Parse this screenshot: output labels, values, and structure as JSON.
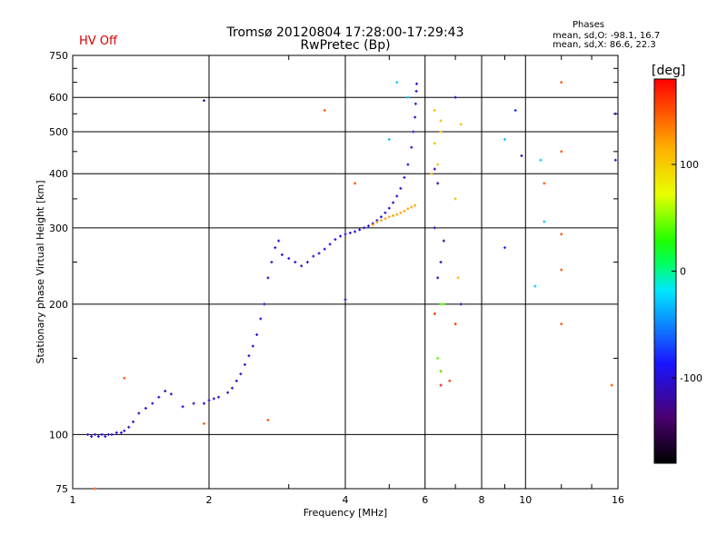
{
  "header": {
    "title_line1": "Tromsø 20120804 17:28:00-17:29:43",
    "title_line2": "RwPretec (Bp)",
    "hv_status": "HV Off",
    "hv_color": "#d40000",
    "phases_title": "Phases",
    "phases_o": "mean, sd,O: -98.1, 16.7",
    "phases_x": "mean, sd,X:  86.6, 22.3"
  },
  "colorbar": {
    "unit": "[deg]",
    "range": [
      -180,
      180
    ],
    "ticks": [
      100,
      0,
      -100
    ],
    "tick_labels": [
      "100",
      "0",
      "-100"
    ]
  },
  "chart_data": {
    "type": "scatter",
    "title": "Tromsø 20120804 17:28:00-17:29:43",
    "subtitle": "RwPretec (Bp)",
    "xlabel": "Frequency [MHz]",
    "ylabel": "Stationary phase Virtual Height [km]",
    "x_scale": "log",
    "y_scale": "log",
    "xlim": [
      1,
      16
    ],
    "ylim": [
      75,
      750
    ],
    "x_ticks": [
      1,
      2,
      4,
      6,
      8,
      10,
      16
    ],
    "x_tick_labels": [
      "1",
      "2",
      "4",
      "6",
      "8",
      "10",
      "16"
    ],
    "y_ticks": [
      75,
      100,
      200,
      300,
      400,
      500,
      600,
      750
    ],
    "y_tick_labels": [
      "75",
      "100",
      "200",
      "300",
      "400",
      "500",
      "600",
      "750"
    ],
    "grid": true,
    "color_by": "phase_deg",
    "series": [
      {
        "points": [
          [
            1.08,
            100,
            -100
          ],
          [
            1.1,
            99,
            -100
          ],
          [
            1.12,
            100,
            -100
          ],
          [
            1.14,
            99,
            -100
          ],
          [
            1.16,
            100,
            -100
          ],
          [
            1.18,
            99,
            -100
          ],
          [
            1.2,
            100,
            -100
          ],
          [
            1.22,
            100,
            -100
          ],
          [
            1.25,
            101,
            -100
          ],
          [
            1.28,
            101,
            -100
          ],
          [
            1.3,
            102,
            -100
          ],
          [
            1.33,
            104,
            -100
          ],
          [
            1.36,
            107,
            -100
          ],
          [
            1.4,
            112,
            -100
          ],
          [
            1.45,
            115,
            -100
          ],
          [
            1.5,
            118,
            -100
          ],
          [
            1.55,
            122,
            -100
          ],
          [
            1.6,
            126,
            -100
          ],
          [
            1.65,
            124,
            -100
          ],
          [
            1.75,
            116,
            -100
          ],
          [
            1.85,
            118,
            -100
          ],
          [
            1.95,
            118,
            -100
          ],
          [
            2.0,
            120,
            -100
          ],
          [
            2.05,
            121,
            -100
          ],
          [
            2.1,
            122,
            -100
          ],
          [
            2.2,
            125,
            -100
          ],
          [
            2.25,
            128,
            -100
          ],
          [
            2.3,
            133,
            -100
          ],
          [
            2.35,
            138,
            -100
          ],
          [
            2.4,
            145,
            -100
          ],
          [
            2.45,
            152,
            -100
          ],
          [
            2.5,
            160,
            -100
          ],
          [
            2.55,
            170,
            -100
          ],
          [
            2.6,
            185,
            -100
          ],
          [
            2.65,
            200,
            -100
          ],
          [
            2.7,
            230,
            -100
          ],
          [
            2.75,
            250,
            -100
          ],
          [
            2.8,
            270,
            -100
          ],
          [
            2.85,
            280,
            -100
          ],
          [
            2.9,
            260,
            -100
          ],
          [
            3.0,
            255,
            -100
          ],
          [
            3.1,
            250,
            -100
          ],
          [
            3.2,
            245,
            -100
          ],
          [
            3.3,
            250,
            -100
          ],
          [
            3.4,
            258,
            -100
          ],
          [
            3.5,
            262,
            -100
          ],
          [
            3.6,
            268,
            -100
          ],
          [
            3.7,
            275,
            -100
          ],
          [
            3.8,
            282,
            -100
          ],
          [
            3.9,
            287,
            -100
          ],
          [
            4.0,
            290,
            -100
          ],
          [
            4.1,
            292,
            -100
          ],
          [
            4.2,
            294,
            -100
          ],
          [
            4.3,
            297,
            -100
          ],
          [
            4.4,
            300,
            -100
          ],
          [
            4.5,
            303,
            -100
          ],
          [
            4.6,
            307,
            -100
          ],
          [
            4.7,
            312,
            -100
          ],
          [
            4.8,
            318,
            -100
          ],
          [
            4.9,
            325,
            -100
          ],
          [
            5.0,
            333,
            -100
          ],
          [
            5.1,
            343,
            -100
          ],
          [
            5.2,
            355,
            -100
          ],
          [
            5.3,
            370,
            -100
          ],
          [
            5.4,
            392,
            -100
          ],
          [
            5.5,
            420,
            -100
          ],
          [
            5.6,
            460,
            -100
          ],
          [
            5.65,
            500,
            -100
          ],
          [
            5.7,
            540,
            -100
          ],
          [
            5.72,
            580,
            -100
          ],
          [
            5.74,
            620,
            -100
          ],
          [
            5.75,
            645,
            -100
          ]
        ]
      },
      {
        "points": [
          [
            4.6,
            305,
            120
          ],
          [
            4.7,
            309,
            120
          ],
          [
            4.8,
            312,
            120
          ],
          [
            4.9,
            315,
            120
          ],
          [
            5.0,
            318,
            120
          ],
          [
            5.1,
            320,
            120
          ],
          [
            5.2,
            322,
            120
          ],
          [
            5.3,
            325,
            120
          ],
          [
            5.4,
            328,
            120
          ],
          [
            5.5,
            332,
            120
          ],
          [
            5.6,
            335,
            120
          ],
          [
            5.7,
            338,
            120
          ]
        ]
      },
      {
        "points": [
          [
            1.3,
            135,
            150
          ],
          [
            1.12,
            75,
            150
          ],
          [
            3.6,
            560,
            150
          ],
          [
            4.2,
            380,
            150
          ],
          [
            2.7,
            108,
            150
          ],
          [
            1.95,
            106,
            150
          ],
          [
            6.5,
            130,
            170
          ],
          [
            6.5,
            140,
            170
          ],
          [
            6.3,
            190,
            160
          ],
          [
            7.0,
            180,
            160
          ],
          [
            6.8,
            133,
            160
          ],
          [
            6.5,
            500,
            110
          ],
          [
            6.3,
            560,
            110
          ],
          [
            6.5,
            530,
            110
          ],
          [
            12.0,
            650,
            150
          ],
          [
            12.0,
            450,
            150
          ],
          [
            12.0,
            290,
            150
          ],
          [
            12.0,
            240,
            150
          ],
          [
            12.0,
            180,
            150
          ],
          [
            15.5,
            130,
            150
          ],
          [
            11.0,
            380,
            150
          ],
          [
            6.3,
            470,
            110
          ],
          [
            6.4,
            420,
            110
          ],
          [
            6.2,
            400,
            110
          ],
          [
            7.2,
            520,
            110
          ],
          [
            7.0,
            350,
            110
          ],
          [
            7.1,
            230,
            110
          ],
          [
            6.5,
            200,
            40
          ],
          [
            6.6,
            200,
            40
          ],
          [
            6.4,
            150,
            40
          ],
          [
            6.5,
            140,
            40
          ]
        ]
      },
      {
        "points": [
          [
            5.2,
            650,
            -30
          ],
          [
            5.0,
            480,
            -30
          ],
          [
            5.5,
            600,
            -30
          ],
          [
            9.0,
            480,
            -30
          ],
          [
            9.5,
            560,
            -80
          ],
          [
            10.8,
            430,
            -30
          ],
          [
            11.0,
            310,
            -30
          ],
          [
            9.0,
            270,
            -80
          ],
          [
            10.5,
            220,
            -30
          ],
          [
            15.8,
            550,
            -110
          ],
          [
            15.8,
            430,
            -110
          ],
          [
            1.95,
            590,
            -110
          ],
          [
            4.0,
            205,
            -110
          ],
          [
            6.3,
            410,
            -110
          ],
          [
            6.4,
            380,
            -110
          ],
          [
            6.3,
            300,
            -110
          ],
          [
            6.5,
            250,
            -110
          ],
          [
            6.4,
            230,
            -110
          ],
          [
            6.6,
            280,
            -110
          ],
          [
            7.0,
            600,
            -110
          ],
          [
            9.8,
            440,
            -110
          ],
          [
            7.2,
            200,
            -110
          ]
        ]
      }
    ]
  }
}
